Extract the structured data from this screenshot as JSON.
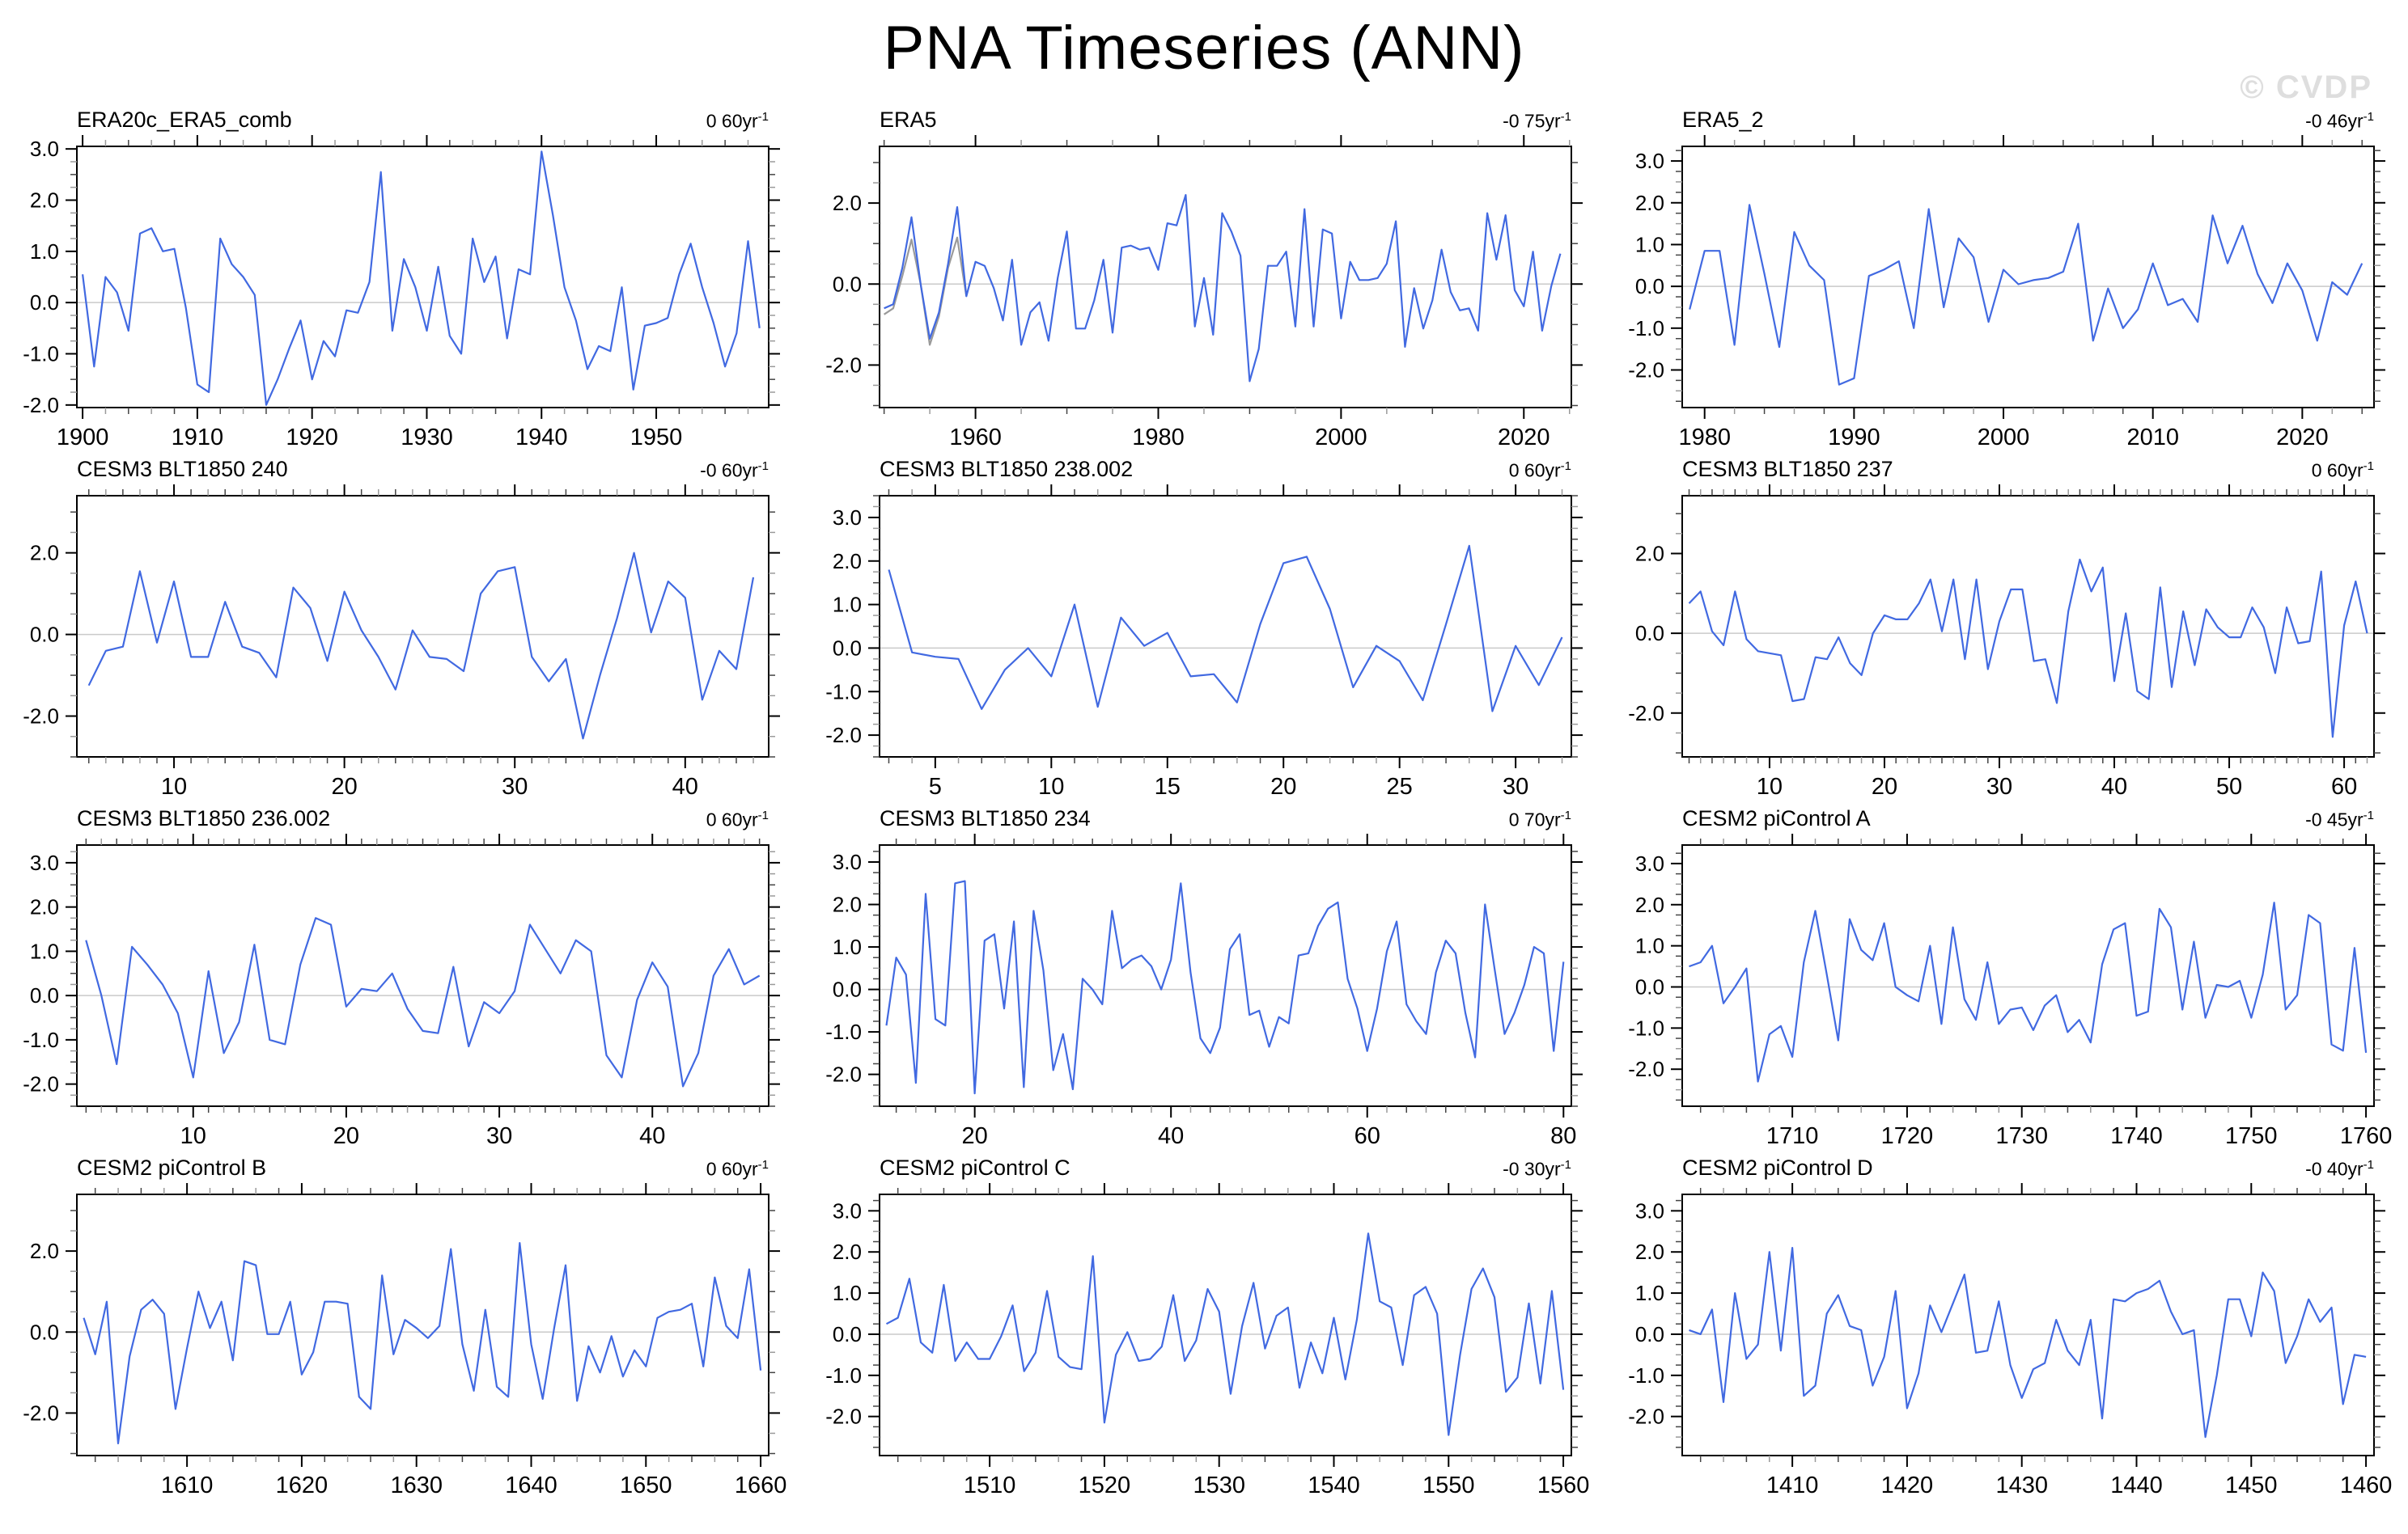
{
  "page": {
    "title": "PNA Timeseries (ANN)",
    "watermark": "© CVDP"
  },
  "colors": {
    "series": "#4169E1",
    "overlay": "#9a9a9a",
    "zero_line": "#cacaca",
    "frame": "#000000",
    "minor_tick_alt": "#9a9a9a",
    "watermark": "#dedede"
  },
  "chart_data": [
    {
      "type": "line",
      "title": "ERA20c_ERA5_comb",
      "trend_label": "0 60yr",
      "trend_sup": "-1",
      "x_start": 1900,
      "x_range": [
        1899.5,
        1959.8
      ],
      "x_major_start": 1900,
      "x_major_step": 10,
      "x_minor_step": 2,
      "y_range": [
        -2.05,
        3.05
      ],
      "y_major_start": -2,
      "y_label_step": 1,
      "y_minor_step": 0.25,
      "values": [
        0.55,
        -1.25,
        0.5,
        0.2,
        -0.55,
        1.35,
        1.45,
        1.0,
        1.05,
        -0.1,
        -1.6,
        -1.75,
        1.25,
        0.75,
        0.5,
        0.15,
        -2.0,
        -1.5,
        -0.9,
        -0.35,
        -1.5,
        -0.75,
        -1.05,
        -0.15,
        -0.2,
        0.4,
        2.55,
        -0.55,
        0.85,
        0.3,
        -0.55,
        0.7,
        -0.65,
        -1.0,
        1.25,
        0.4,
        0.9,
        -0.7,
        0.65,
        0.55,
        2.95,
        1.7,
        0.3,
        -0.35,
        -1.3,
        -0.85,
        -0.95,
        0.3,
        -1.7,
        -0.45,
        -0.4,
        -0.3,
        0.55,
        1.15,
        0.3,
        -0.4,
        -1.25,
        -0.6,
        1.2,
        -0.5
      ],
      "overlay": null
    },
    {
      "type": "line",
      "title": "ERA5",
      "trend_label": "-0 75yr",
      "trend_sup": "-1",
      "x_start": 1950,
      "x_range": [
        1949.5,
        2025.2
      ],
      "x_major_start": 1960,
      "x_major_step": 20,
      "x_minor_step": 5,
      "y_range": [
        -3.05,
        3.4
      ],
      "y_major_start": -2,
      "y_label_step": 2,
      "y_minor_step": 0.5,
      "values": [
        -0.6,
        -0.5,
        0.4,
        1.65,
        0.0,
        -1.35,
        -0.7,
        0.5,
        1.9,
        -0.3,
        0.55,
        0.45,
        -0.1,
        -0.9,
        0.6,
        -1.5,
        -0.7,
        -0.45,
        -1.4,
        0.15,
        1.3,
        -1.1,
        -1.1,
        -0.4,
        0.6,
        -1.2,
        0.9,
        0.95,
        0.85,
        0.9,
        0.35,
        1.5,
        1.45,
        2.2,
        -1.05,
        0.15,
        -1.25,
        1.75,
        1.3,
        0.7,
        -2.4,
        -1.6,
        0.45,
        0.45,
        0.8,
        -1.05,
        1.85,
        -1.05,
        1.35,
        1.25,
        -0.85,
        0.55,
        0.1,
        0.1,
        0.15,
        0.5,
        1.55,
        -1.55,
        -0.1,
        -1.1,
        -0.4,
        0.85,
        -0.2,
        -0.65,
        -0.6,
        -1.15,
        1.75,
        0.6,
        1.7,
        -0.15,
        -0.55,
        0.8,
        -1.15,
        -0.05,
        0.75
      ],
      "overlay": {
        "x_start": 1950,
        "values": [
          -0.75,
          -0.6,
          0.2,
          1.1,
          0.0,
          -1.5,
          -0.8,
          0.4,
          1.15,
          -0.3
        ]
      }
    },
    {
      "type": "line",
      "title": "ERA5_2",
      "trend_label": "-0 46yr",
      "trend_sup": "-1",
      "x_start": 1979,
      "x_range": [
        1978.5,
        2024.8
      ],
      "x_major_start": 1980,
      "x_major_step": 10,
      "x_minor_step": 2,
      "y_range": [
        -2.9,
        3.35
      ],
      "y_major_start": -2,
      "y_label_step": 1,
      "y_minor_step": 0.25,
      "values": [
        -0.55,
        0.85,
        0.85,
        -1.4,
        1.95,
        0.3,
        -1.45,
        1.3,
        0.5,
        0.15,
        -2.35,
        -2.2,
        0.25,
        0.4,
        0.6,
        -1.0,
        1.85,
        -0.5,
        1.15,
        0.7,
        -0.85,
        0.4,
        0.05,
        0.15,
        0.2,
        0.35,
        1.5,
        -1.3,
        -0.05,
        -1.0,
        -0.55,
        0.55,
        -0.45,
        -0.3,
        -0.85,
        1.7,
        0.55,
        1.45,
        0.3,
        -0.4,
        0.55,
        -0.1,
        -1.3,
        0.1,
        -0.2,
        0.55
      ],
      "overlay": null
    },
    {
      "type": "line",
      "title": "CESM3 BLT1850 240",
      "trend_label": "-0 60yr",
      "trend_sup": "-1",
      "x_start": 5,
      "x_range": [
        4.3,
        44.9
      ],
      "x_major_start": 10,
      "x_major_step": 10,
      "x_minor_step": 1,
      "y_range": [
        -3.0,
        3.4
      ],
      "y_major_start": -2,
      "y_label_step": 2,
      "y_minor_step": 0.5,
      "values": [
        -1.25,
        -0.4,
        -0.3,
        1.55,
        -0.2,
        1.3,
        -0.55,
        -0.55,
        0.8,
        -0.3,
        -0.45,
        -1.05,
        1.15,
        0.65,
        -0.65,
        1.05,
        0.1,
        -0.55,
        -1.35,
        0.1,
        -0.55,
        -0.6,
        -0.9,
        1.0,
        1.55,
        1.65,
        -0.55,
        -1.15,
        -0.6,
        -2.55,
        -1.0,
        0.4,
        2.0,
        0.05,
        1.3,
        0.9,
        -1.6,
        -0.4,
        -0.85,
        1.4
      ],
      "overlay": null
    },
    {
      "type": "line",
      "title": "CESM3 BLT1850 238.002",
      "trend_label": "0 60yr",
      "trend_sup": "-1",
      "x_start": 3,
      "x_range": [
        2.6,
        32.4
      ],
      "x_major_start": 5,
      "x_major_step": 5,
      "x_minor_step": 1,
      "y_range": [
        -2.5,
        3.5
      ],
      "y_major_start": -2,
      "y_label_step": 1,
      "y_minor_step": 0.25,
      "values": [
        1.8,
        -0.1,
        -0.2,
        -0.25,
        -1.4,
        -0.5,
        0.0,
        -0.65,
        1.0,
        -1.35,
        0.7,
        0.05,
        0.35,
        -0.65,
        -0.6,
        -1.25,
        0.55,
        1.95,
        2.1,
        0.9,
        -0.9,
        0.05,
        -0.3,
        -1.2,
        0.55,
        2.35,
        -1.45,
        0.05,
        -0.85,
        0.25
      ],
      "overlay": null
    },
    {
      "type": "line",
      "title": "CESM3 BLT1850 237",
      "trend_label": "0 60yr",
      "trend_sup": "-1",
      "x_start": 3,
      "x_range": [
        2.4,
        62.6
      ],
      "x_major_start": 10,
      "x_major_step": 10,
      "x_minor_step": 1,
      "y_range": [
        -3.1,
        3.45
      ],
      "y_major_start": -2,
      "y_label_step": 2,
      "y_minor_step": 0.5,
      "values": [
        0.75,
        1.05,
        0.05,
        -0.3,
        1.05,
        -0.15,
        -0.45,
        -0.5,
        -0.55,
        -1.7,
        -1.65,
        -0.6,
        -0.65,
        -0.1,
        -0.75,
        -1.05,
        0.0,
        0.45,
        0.35,
        0.35,
        0.75,
        1.35,
        0.05,
        1.35,
        -0.65,
        1.35,
        -0.9,
        0.3,
        1.1,
        1.1,
        -0.7,
        -0.65,
        -1.75,
        0.55,
        1.85,
        1.05,
        1.65,
        -1.2,
        0.5,
        -1.45,
        -1.65,
        1.15,
        -1.35,
        0.55,
        -0.8,
        0.6,
        0.15,
        -0.1,
        -0.1,
        0.65,
        0.15,
        -1.0,
        0.65,
        -0.25,
        -0.2,
        1.55,
        -2.6,
        0.2,
        1.3,
        0.0
      ],
      "overlay": null
    },
    {
      "type": "line",
      "title": "CESM3 BLT1850 236.002",
      "trend_label": "0 60yr",
      "trend_sup": "-1",
      "x_start": 3,
      "x_range": [
        2.4,
        47.6
      ],
      "x_major_start": 10,
      "x_major_step": 10,
      "x_minor_step": 1,
      "y_range": [
        -2.5,
        3.4
      ],
      "y_major_start": -2,
      "y_label_step": 1,
      "y_minor_step": 0.25,
      "values": [
        1.25,
        0.0,
        -1.55,
        1.1,
        0.7,
        0.25,
        -0.4,
        -1.85,
        0.55,
        -1.3,
        -0.6,
        1.15,
        -1.0,
        -1.1,
        0.7,
        1.75,
        1.6,
        -0.25,
        0.15,
        0.1,
        0.5,
        -0.3,
        -0.8,
        -0.85,
        0.65,
        -1.15,
        -0.15,
        -0.4,
        0.1,
        1.6,
        1.05,
        0.5,
        1.25,
        1.0,
        -1.35,
        -1.85,
        -0.1,
        0.75,
        0.2,
        -2.05,
        -1.3,
        0.45,
        1.05,
        0.25,
        0.45
      ],
      "overlay": null
    },
    {
      "type": "line",
      "title": "CESM3 BLT1850 234",
      "trend_label": "0 70yr",
      "trend_sup": "-1",
      "x_start": 11,
      "x_range": [
        10.3,
        80.8
      ],
      "x_major_start": 20,
      "x_major_step": 20,
      "x_minor_step": 2,
      "y_range": [
        -2.75,
        3.4
      ],
      "y_major_start": -2,
      "y_label_step": 1,
      "y_minor_step": 0.25,
      "values": [
        -0.85,
        0.75,
        0.35,
        -2.2,
        2.25,
        -0.7,
        -0.85,
        2.5,
        2.55,
        -2.45,
        1.15,
        1.3,
        -0.45,
        1.6,
        -2.3,
        1.85,
        0.45,
        -1.9,
        -1.05,
        -2.35,
        0.25,
        0.0,
        -0.35,
        1.85,
        0.5,
        0.7,
        0.8,
        0.55,
        0.0,
        0.7,
        2.5,
        0.4,
        -1.15,
        -1.5,
        -0.9,
        0.95,
        1.3,
        -0.6,
        -0.5,
        -1.35,
        -0.65,
        -0.8,
        0.8,
        0.85,
        1.5,
        1.9,
        2.05,
        0.25,
        -0.45,
        -1.45,
        -0.45,
        0.9,
        1.6,
        -0.35,
        -0.75,
        -1.05,
        0.4,
        1.15,
        0.85,
        -0.55,
        -1.6,
        2.0,
        0.45,
        -1.05,
        -0.55,
        0.1,
        1.0,
        0.85,
        -1.45,
        0.65
      ],
      "overlay": null
    },
    {
      "type": "line",
      "title": "CESM2 piControl A",
      "trend_label": "-0 45yr",
      "trend_sup": "-1",
      "x_start": 1701,
      "x_range": [
        1700.4,
        1760.7
      ],
      "x_major_start": 1710,
      "x_major_step": 10,
      "x_minor_step": 2,
      "y_range": [
        -2.9,
        3.45
      ],
      "y_major_start": -2,
      "y_label_step": 1,
      "y_minor_step": 0.25,
      "values": [
        0.5,
        0.6,
        1.0,
        -0.4,
        0.0,
        0.45,
        -2.3,
        -1.15,
        -0.95,
        -1.7,
        0.6,
        1.85,
        0.3,
        -1.3,
        1.65,
        0.9,
        0.65,
        1.55,
        0.0,
        -0.2,
        -0.35,
        1.0,
        -0.9,
        1.45,
        -0.3,
        -0.8,
        0.6,
        -0.9,
        -0.55,
        -0.5,
        -1.05,
        -0.45,
        -0.2,
        -1.1,
        -0.8,
        -1.35,
        0.55,
        1.4,
        1.55,
        -0.7,
        -0.6,
        1.9,
        1.45,
        -0.55,
        1.1,
        -0.75,
        0.05,
        0.0,
        0.15,
        -0.75,
        0.3,
        2.05,
        -0.55,
        -0.2,
        1.75,
        1.55,
        -1.4,
        -1.55,
        0.95,
        -1.6
      ],
      "overlay": null
    },
    {
      "type": "line",
      "title": "CESM2 piControl B",
      "trend_label": "0 60yr",
      "trend_sup": "-1",
      "x_start": 1601,
      "x_range": [
        1600.4,
        1660.7
      ],
      "x_major_start": 1610,
      "x_major_step": 10,
      "x_minor_step": 2,
      "y_range": [
        -3.05,
        3.4
      ],
      "y_major_start": -2,
      "y_label_step": 2,
      "y_minor_step": 0.5,
      "values": [
        0.35,
        -0.55,
        0.75,
        -2.75,
        -0.6,
        0.55,
        0.8,
        0.45,
        -1.9,
        -0.4,
        1.0,
        0.1,
        0.75,
        -0.7,
        1.75,
        1.65,
        -0.05,
        -0.05,
        0.75,
        -1.05,
        -0.5,
        0.75,
        0.75,
        0.7,
        -1.6,
        -1.9,
        1.4,
        -0.55,
        0.3,
        0.1,
        -0.15,
        0.15,
        2.05,
        -0.3,
        -1.45,
        0.55,
        -1.35,
        -1.6,
        2.2,
        -0.3,
        -1.65,
        0.1,
        1.65,
        -1.7,
        -0.35,
        -1.0,
        -0.1,
        -1.1,
        -0.45,
        -0.85,
        0.35,
        0.5,
        0.55,
        0.7,
        -0.85,
        1.35,
        0.15,
        -0.15,
        1.55,
        -0.95
      ],
      "overlay": null
    },
    {
      "type": "line",
      "title": "CESM2 piControl C",
      "trend_label": "-0 30yr",
      "trend_sup": "-1",
      "x_start": 1501,
      "x_range": [
        1500.4,
        1560.7
      ],
      "x_major_start": 1510,
      "x_major_step": 10,
      "x_minor_step": 2,
      "y_range": [
        -2.95,
        3.4
      ],
      "y_major_start": -2,
      "y_label_step": 1,
      "y_minor_step": 0.25,
      "values": [
        0.25,
        0.4,
        1.35,
        -0.2,
        -0.45,
        1.2,
        -0.65,
        -0.2,
        -0.6,
        -0.6,
        -0.05,
        0.7,
        -0.9,
        -0.45,
        1.05,
        -0.55,
        -0.8,
        -0.85,
        1.9,
        -2.15,
        -0.5,
        0.05,
        -0.65,
        -0.6,
        -0.3,
        0.95,
        -0.65,
        -0.15,
        1.1,
        0.55,
        -1.45,
        0.2,
        1.25,
        -0.35,
        0.45,
        0.65,
        -1.3,
        -0.2,
        -0.95,
        0.4,
        -1.1,
        0.35,
        2.45,
        0.8,
        0.65,
        -0.75,
        0.95,
        1.15,
        0.5,
        -2.45,
        -0.5,
        1.1,
        1.6,
        0.9,
        -1.4,
        -1.05,
        0.75,
        -1.2,
        1.05,
        -1.35
      ],
      "overlay": null
    },
    {
      "type": "line",
      "title": "CESM2 piControl D",
      "trend_label": "-0 40yr",
      "trend_sup": "-1",
      "x_start": 1401,
      "x_range": [
        1400.4,
        1460.7
      ],
      "x_major_start": 1410,
      "x_major_step": 10,
      "x_minor_step": 2,
      "y_range": [
        -2.95,
        3.4
      ],
      "y_major_start": -2,
      "y_label_step": 1,
      "y_minor_step": 0.25,
      "values": [
        0.1,
        0.0,
        0.6,
        -1.65,
        1.0,
        -0.6,
        -0.25,
        2.0,
        -0.4,
        2.1,
        -1.5,
        -1.25,
        0.5,
        0.95,
        0.2,
        0.1,
        -1.25,
        -0.55,
        1.05,
        -1.8,
        -0.95,
        0.7,
        0.05,
        0.75,
        1.45,
        -0.45,
        -0.4,
        0.8,
        -0.75,
        -1.55,
        -0.85,
        -0.7,
        0.35,
        -0.4,
        -0.75,
        0.35,
        -2.05,
        0.85,
        0.8,
        1.0,
        1.1,
        1.3,
        0.55,
        0.0,
        0.1,
        -2.5,
        -1.0,
        0.85,
        0.85,
        -0.05,
        1.5,
        1.05,
        -0.7,
        -0.05,
        0.85,
        0.3,
        0.65,
        -1.7,
        -0.5,
        -0.55
      ],
      "overlay": null
    }
  ]
}
